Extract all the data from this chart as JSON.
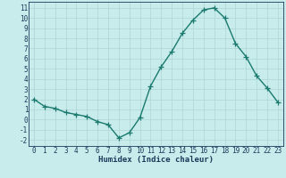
{
  "x": [
    0,
    1,
    2,
    3,
    4,
    5,
    6,
    7,
    8,
    9,
    10,
    11,
    12,
    13,
    14,
    15,
    16,
    17,
    18,
    19,
    20,
    21,
    22,
    23
  ],
  "y": [
    2.0,
    1.3,
    1.1,
    0.7,
    0.5,
    0.3,
    -0.2,
    -0.5,
    -1.8,
    -1.3,
    0.2,
    3.3,
    5.2,
    6.7,
    8.5,
    9.8,
    10.8,
    11.0,
    10.0,
    7.5,
    6.2,
    4.3,
    3.1,
    1.7
  ],
  "line_color": "#1a7a6e",
  "bg_color": "#c8ecec",
  "grid_color": "#aed4d4",
  "xlabel": "Humidex (Indice chaleur)",
  "xlim": [
    -0.5,
    23.5
  ],
  "ylim": [
    -2.6,
    11.6
  ],
  "yticks": [
    -2,
    -1,
    0,
    1,
    2,
    3,
    4,
    5,
    6,
    7,
    8,
    9,
    10,
    11
  ],
  "xticks": [
    0,
    1,
    2,
    3,
    4,
    5,
    6,
    7,
    8,
    9,
    10,
    11,
    12,
    13,
    14,
    15,
    16,
    17,
    18,
    19,
    20,
    21,
    22,
    23
  ],
  "marker_size": 4,
  "line_width": 1.0,
  "font_color": "#1a3a5a",
  "label_fontsize": 6.5,
  "tick_fontsize": 5.5
}
